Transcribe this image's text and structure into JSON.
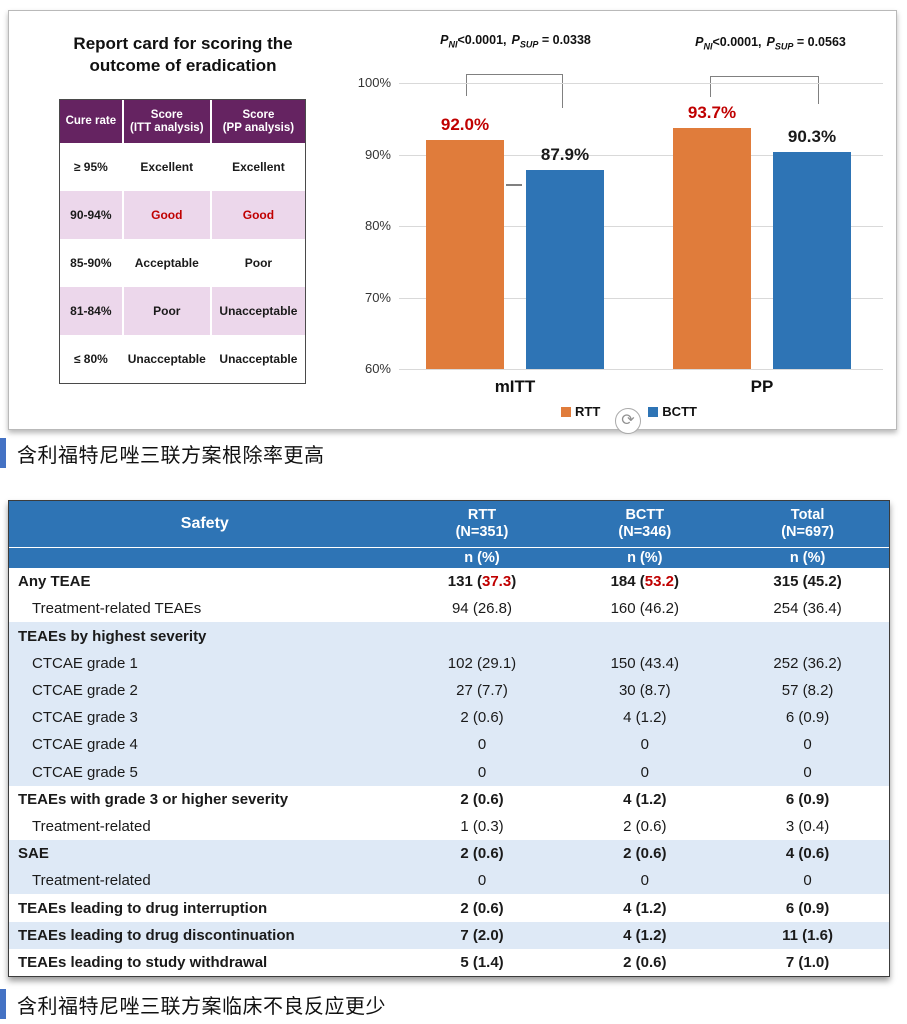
{
  "report_card": {
    "title": [
      "Report card for scoring the",
      "outcome of eradication"
    ],
    "headers": [
      {
        "label": "Cure rate",
        "sub": ""
      },
      {
        "label": "Score",
        "sub": "(ITT analysis)"
      },
      {
        "label": "Score",
        "sub": "(PP analysis)"
      }
    ],
    "rows": [
      {
        "cure": "≥ 95%",
        "itt": "Excellent",
        "pp": "Excellent",
        "pink": false,
        "red": false
      },
      {
        "cure": "90-94%",
        "itt": "Good",
        "pp": "Good",
        "pink": true,
        "red": true
      },
      {
        "cure": "85-90%",
        "itt": "Acceptable",
        "pp": "Poor",
        "pink": false,
        "red": false
      },
      {
        "cure": "81-84%",
        "itt": "Poor",
        "pp": "Unacceptable",
        "pink": true,
        "red": false
      },
      {
        "cure": "≤ 80%",
        "itt": "Unacceptable",
        "pp": "Unacceptable",
        "pink": false,
        "red": false
      }
    ],
    "colors": {
      "header_bg": "#652361",
      "pink_row": "#ECD7EB",
      "red_text": "#C00000"
    }
  },
  "chart_data": {
    "type": "bar",
    "categories": [
      "mITT",
      "PP"
    ],
    "series": [
      {
        "name": "RTT",
        "values": [
          92.0,
          93.7
        ],
        "labels": [
          "92.0%",
          "93.7%"
        ],
        "color": "#E07C3B",
        "label_color": "#C00000"
      },
      {
        "name": "BCTT",
        "values": [
          87.9,
          90.3
        ],
        "labels": [
          "87.9%",
          "90.3%"
        ],
        "color": "#2E74B5",
        "label_color": "#1A1A1A"
      }
    ],
    "ylim": [
      60,
      100
    ],
    "yticks": [
      {
        "label": "100%",
        "value": 100
      },
      {
        "label": "90%",
        "value": 90
      },
      {
        "label": "80%",
        "value": 80
      },
      {
        "label": "70%",
        "value": 70
      },
      {
        "label": "60%",
        "value": 60
      }
    ],
    "grid": true,
    "legend_position": "bottom",
    "stats": [
      {
        "p1": "P",
        "s1": "NI",
        "v1": "<0.0001,",
        "p2": "P",
        "s2": "SUP",
        "v2": "= 0.0338"
      },
      {
        "p1": "P",
        "s1": "NI",
        "v1": "<0.0001,",
        "p2": "P",
        "s2": "SUP",
        "v2": "= 0.0563"
      }
    ]
  },
  "refresh_icon": "⟳",
  "caption1": "含利福特尼唑三联方案根除率更高",
  "caption2": "含利福特尼唑三联方案临床不良反应更少",
  "safety_table": {
    "header": {
      "col0": "Safety",
      "cols": [
        {
          "line1": "RTT",
          "line2": "(N=351)",
          "line3": "n (%)"
        },
        {
          "line1": "BCTT",
          "line2": "(N=346)",
          "line3": "n (%)"
        },
        {
          "line1": "Total",
          "line2": "(N=697)",
          "line3": "n (%)"
        }
      ]
    },
    "colors": {
      "header_bg": "#2E74B5",
      "shade_row": "#DEE9F6",
      "red_text": "#C00000"
    },
    "rows": [
      {
        "label": "Any TEAE",
        "bold": true,
        "indent": false,
        "shade": false,
        "cells": [
          {
            "pre": "131 (",
            "red": "37.3",
            "post": ")"
          },
          {
            "pre": "184 (",
            "red": "53.2",
            "post": ")"
          },
          "315 (45.2)"
        ]
      },
      {
        "label": "Treatment-related TEAEs",
        "bold": false,
        "indent": true,
        "shade": false,
        "cells": [
          "94 (26.8)",
          "160 (46.2)",
          "254 (36.4)"
        ]
      },
      {
        "label": "TEAEs by highest severity",
        "bold": true,
        "indent": false,
        "shade": true,
        "cells": [
          "",
          "",
          ""
        ]
      },
      {
        "label": "CTCAE grade 1",
        "bold": false,
        "indent": true,
        "shade": true,
        "cells": [
          "102 (29.1)",
          "150 (43.4)",
          "252 (36.2)"
        ]
      },
      {
        "label": "CTCAE grade 2",
        "bold": false,
        "indent": true,
        "shade": true,
        "cells": [
          "27 (7.7)",
          "30 (8.7)",
          "57 (8.2)"
        ]
      },
      {
        "label": "CTCAE grade 3",
        "bold": false,
        "indent": true,
        "shade": true,
        "cells": [
          "2 (0.6)",
          "4 (1.2)",
          "6 (0.9)"
        ]
      },
      {
        "label": "CTCAE grade 4",
        "bold": false,
        "indent": true,
        "shade": true,
        "cells": [
          "0",
          "0",
          "0"
        ]
      },
      {
        "label": "CTCAE grade 5",
        "bold": false,
        "indent": true,
        "shade": true,
        "cells": [
          "0",
          "0",
          "0"
        ]
      },
      {
        "label": "TEAEs with grade 3 or higher severity",
        "bold": true,
        "indent": false,
        "shade": false,
        "cells": [
          "2 (0.6)",
          "4 (1.2)",
          "6 (0.9)"
        ]
      },
      {
        "label": "Treatment-related",
        "bold": false,
        "indent": true,
        "shade": false,
        "cells": [
          "1 (0.3)",
          "2 (0.6)",
          "3 (0.4)"
        ]
      },
      {
        "label": "SAE",
        "bold": true,
        "indent": false,
        "shade": true,
        "cells": [
          "2 (0.6)",
          "2 (0.6)",
          "4 (0.6)"
        ]
      },
      {
        "label": "Treatment-related",
        "bold": false,
        "indent": true,
        "shade": true,
        "cells": [
          "0",
          "0",
          "0"
        ]
      },
      {
        "label": "TEAEs leading to drug interruption",
        "bold": true,
        "indent": false,
        "shade": false,
        "cells": [
          "2 (0.6)",
          "4 (1.2)",
          "6 (0.9)"
        ]
      },
      {
        "label": "TEAEs leading to drug discontinuation",
        "bold": true,
        "indent": false,
        "shade": true,
        "cells": [
          "7 (2.0)",
          "4 (1.2)",
          "11 (1.6)"
        ]
      },
      {
        "label": "TEAEs leading to study withdrawal",
        "bold": true,
        "indent": false,
        "shade": false,
        "cells": [
          "5 (1.4)",
          "2 (0.6)",
          "7 (1.0)"
        ]
      }
    ]
  }
}
